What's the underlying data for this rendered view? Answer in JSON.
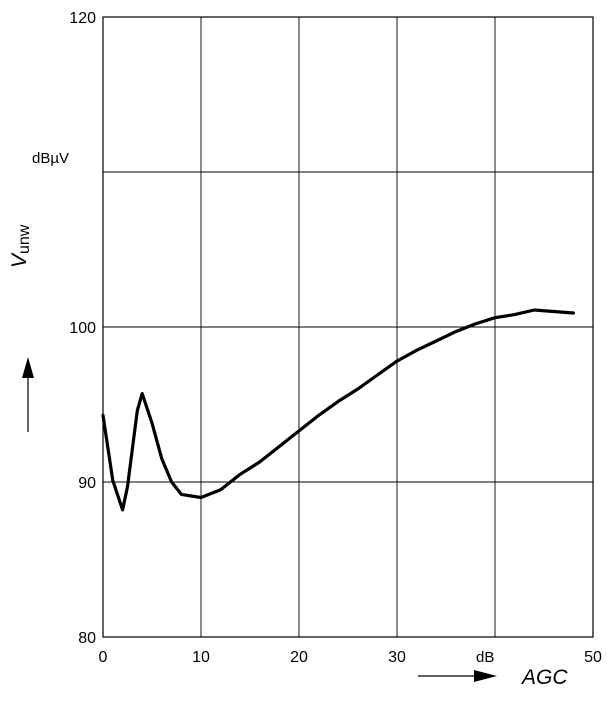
{
  "chart_data": {
    "type": "line",
    "title": "",
    "xlabel": "AGC",
    "x_unit": "dB",
    "ylabel_symbol": "V",
    "ylabel_subscript": "unw",
    "y_unit": "dBµV",
    "xlim": [
      0,
      50
    ],
    "ylim": [
      80,
      120
    ],
    "x_ticks": [
      "0",
      "10",
      "20",
      "30",
      "50"
    ],
    "y_ticks": [
      "80",
      "90",
      "100",
      "120"
    ],
    "grid": true,
    "series": [
      {
        "x": [
          0,
          1,
          2,
          2.5,
          3.5,
          4,
          5,
          6,
          7,
          8,
          10,
          12,
          14,
          16,
          18,
          20,
          22,
          24,
          26,
          28,
          30,
          32,
          34,
          36,
          38,
          40,
          42,
          44,
          46,
          48
        ],
        "y": [
          94.3,
          90.1,
          88.2,
          89.7,
          94.6,
          95.7,
          93.8,
          91.5,
          90.0,
          89.2,
          89.0,
          89.5,
          90.5,
          91.3,
          92.3,
          93.3,
          94.3,
          95.2,
          96.0,
          96.9,
          97.8,
          98.5,
          99.1,
          99.7,
          100.2,
          100.6,
          100.8,
          101.1,
          101.0,
          100.9
        ]
      }
    ]
  }
}
